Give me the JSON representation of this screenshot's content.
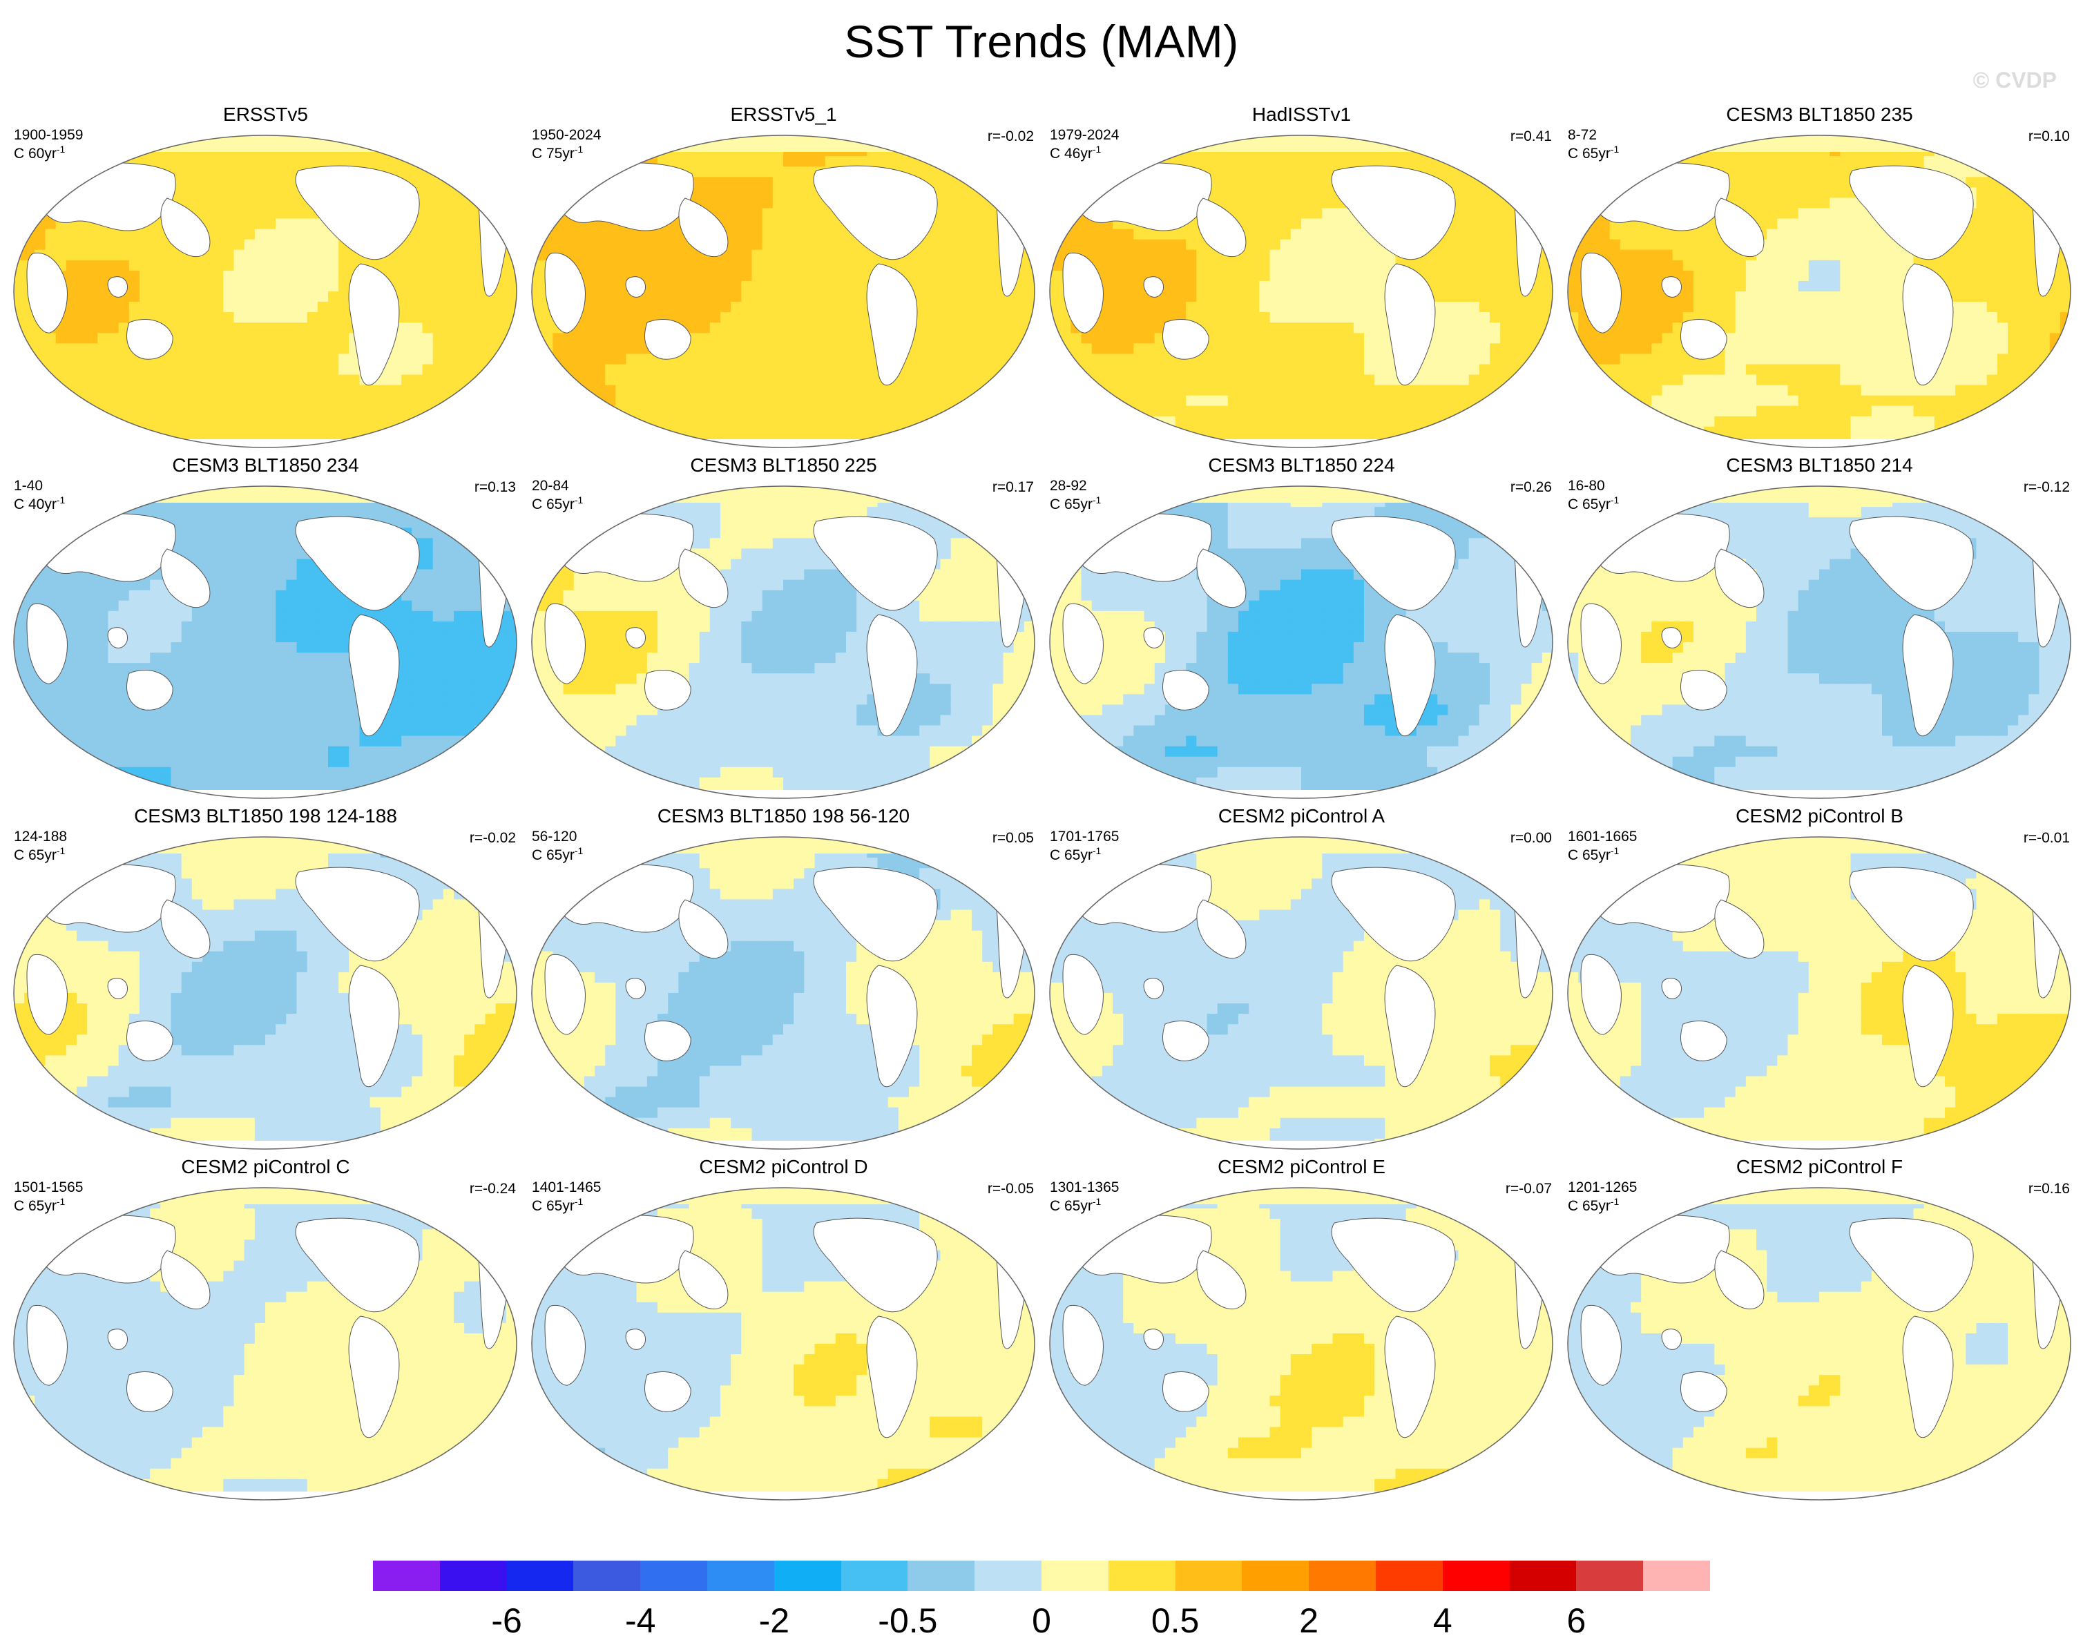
{
  "title": "SST Trends (MAM)",
  "watermark": "© CVDP",
  "units_prefix": "C",
  "units_exponent": "-1",
  "panels": [
    {
      "title": "ERSSTv5",
      "period": "1900-1959",
      "len": "60yr",
      "corr": "",
      "pattern": [
        0.7,
        0.4,
        0.3,
        0.25
      ]
    },
    {
      "title": "ERSSTv5_1",
      "period": "1950-2024",
      "len": "75yr",
      "corr": "r=-0.02",
      "pattern": [
        0.9,
        0.05,
        0.05,
        0.1
      ]
    },
    {
      "title": "HadISSTv1",
      "period": "1979-2024",
      "len": "46yr",
      "corr": "r=0.41",
      "pattern": [
        0.7,
        0.5,
        0.25,
        0.5
      ]
    },
    {
      "title": "CESM3 BLT1850 235",
      "period": "8-72",
      "len": "65yr",
      "corr": "r=0.10",
      "pattern": [
        0.65,
        0.7,
        0.35,
        1.0
      ]
    },
    {
      "title": "CESM3 BLT1850 234",
      "period": "1-40",
      "len": "40yr",
      "corr": "r=0.13",
      "pattern": [
        -0.75,
        0.4,
        0.05,
        1.4
      ]
    },
    {
      "title": "CESM3 BLT1850 225",
      "period": "20-84",
      "len": "65yr",
      "corr": "r=0.17",
      "pattern": [
        0.05,
        0.8,
        0.3,
        1.2
      ]
    },
    {
      "title": "CESM3 BLT1850 224",
      "period": "28-92",
      "len": "65yr",
      "corr": "r=0.26",
      "pattern": [
        -0.35,
        1.0,
        0.4,
        1.5
      ]
    },
    {
      "title": "CESM3 BLT1850 214",
      "period": "16-80",
      "len": "65yr",
      "corr": "r=-0.12",
      "pattern": [
        -0.15,
        0.8,
        0.2,
        1.0
      ]
    },
    {
      "title": "CESM3 BLT1850 198 124-188",
      "period": "124-188",
      "len": "65yr",
      "corr": "r=-0.02",
      "pattern": [
        0.1,
        0.9,
        0.5,
        1.3
      ]
    },
    {
      "title": "CESM3 BLT1850 198 56-120",
      "period": "56-120",
      "len": "65yr",
      "corr": "r=0.05",
      "pattern": [
        0.0,
        0.8,
        0.6,
        1.4
      ]
    },
    {
      "title": "CESM2 piControl A",
      "period": "1701-1765",
      "len": "65yr",
      "corr": "r=0.00",
      "pattern": [
        0.05,
        0.5,
        0.7,
        0.6
      ]
    },
    {
      "title": "CESM2 piControl B",
      "period": "1601-1665",
      "len": "65yr",
      "corr": "r=-0.01",
      "pattern": [
        0.25,
        0.6,
        0.8,
        0.7
      ]
    },
    {
      "title": "CESM2 piControl C",
      "period": "1501-1565",
      "len": "65yr",
      "corr": "r=-0.24",
      "pattern": [
        0.05,
        0.45,
        0.9,
        0.4
      ]
    },
    {
      "title": "CESM2 piControl D",
      "period": "1401-1465",
      "len": "65yr",
      "corr": "r=-0.05",
      "pattern": [
        0.1,
        0.55,
        1.0,
        0.5
      ]
    },
    {
      "title": "CESM2 piControl E",
      "period": "1301-1365",
      "len": "65yr",
      "corr": "r=-0.07",
      "pattern": [
        0.15,
        0.5,
        1.1,
        0.9
      ]
    },
    {
      "title": "CESM2 piControl F",
      "period": "1201-1265",
      "len": "65yr",
      "corr": "r=0.16",
      "pattern": [
        0.05,
        0.45,
        1.2,
        0.7
      ]
    }
  ],
  "colorbar": {
    "colors": [
      "#8a1ef0",
      "#3a10f0",
      "#1428f0",
      "#3c5ae0",
      "#2f6ff0",
      "#2e8df5",
      "#10aef5",
      "#46bff2",
      "#8ecbeb",
      "#bde0f4",
      "#fffaa8",
      "#ffe23a",
      "#ffbf18",
      "#ffa000",
      "#ff7800",
      "#ff3c00",
      "#ff0000",
      "#d40000",
      "#d83c3c",
      "#ffb4b4"
    ],
    "labels": [
      {
        "text": "-6",
        "boundary": 2
      },
      {
        "text": "-4",
        "boundary": 4
      },
      {
        "text": "-2",
        "boundary": 6
      },
      {
        "text": "-0.5",
        "boundary": 8
      },
      {
        "text": "0",
        "boundary": 10
      },
      {
        "text": "0.5",
        "boundary": 12
      },
      {
        "text": "2",
        "boundary": 14
      },
      {
        "text": "4",
        "boundary": 16
      },
      {
        "text": "6",
        "boundary": 18
      }
    ]
  }
}
